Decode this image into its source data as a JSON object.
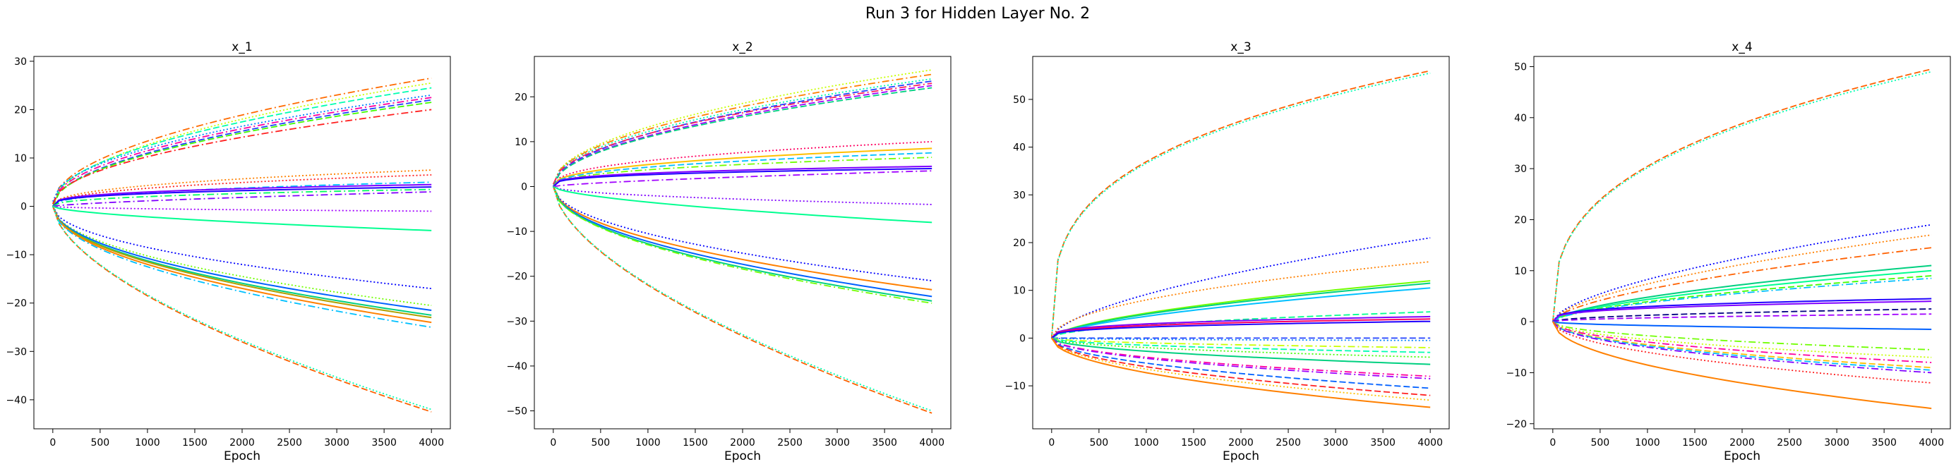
{
  "figure": {
    "title": "Run 3 for Hidden Layer No. 2"
  },
  "chart_data": [
    {
      "type": "line",
      "title": "x_1",
      "xlabel": "Epoch",
      "ylabel": "",
      "xlim": [
        -200,
        4200
      ],
      "ylim": [
        -46,
        31
      ],
      "xticks": [
        0,
        500,
        1000,
        1500,
        2000,
        2500,
        3000,
        3500,
        4000
      ],
      "yticks": [
        -40,
        -30,
        -20,
        -10,
        0,
        10,
        20,
        30
      ],
      "grid": false,
      "series": [
        {
          "color": "#ff6a00",
          "style": "dashdot",
          "start": 0.5,
          "end": 26.5,
          "curve": 0.5
        },
        {
          "color": "#c8ff00",
          "style": "dotted",
          "start": 0.0,
          "end": 25.5,
          "curve": 0.5
        },
        {
          "color": "#00ffb0",
          "style": "dashed",
          "start": 0.5,
          "end": 24.5,
          "curve": 0.5
        },
        {
          "color": "#0080ff",
          "style": "dotted",
          "start": 1.0,
          "end": 23.0,
          "curve": 0.5
        },
        {
          "color": "#ff00a0",
          "style": "dashdot",
          "start": 0.5,
          "end": 22.5,
          "curve": 0.5
        },
        {
          "color": "#2040ff",
          "style": "dashed",
          "start": 0.0,
          "end": 22.0,
          "curve": 0.5
        },
        {
          "color": "#40ff00",
          "style": "dashed",
          "start": 0.0,
          "end": 21.5,
          "curve": 0.5
        },
        {
          "color": "#ff2020",
          "style": "dashdot",
          "start": 0.5,
          "end": 20.0,
          "curve": 0.5
        },
        {
          "color": "#ff8000",
          "style": "dotted",
          "start": 0.0,
          "end": 7.5,
          "curve": 0.4
        },
        {
          "color": "#ff2020",
          "style": "dotted",
          "start": 0.0,
          "end": 6.5,
          "curve": 0.4
        },
        {
          "color": "#00c0ff",
          "style": "dashdot",
          "start": 0.0,
          "end": 5.0,
          "curve": 0.4
        },
        {
          "color": "#8000ff",
          "style": "solid",
          "start": 0.0,
          "end": 4.5,
          "curve": 0.3
        },
        {
          "color": "#2000ff",
          "style": "solid",
          "start": 0.0,
          "end": 4.0,
          "curve": 0.3
        },
        {
          "color": "#00ff60",
          "style": "dashdot",
          "start": 0.0,
          "end": 3.5,
          "curve": 0.4
        },
        {
          "color": "#8000ff",
          "style": "dashdot",
          "start": 0.0,
          "end": 3.0,
          "curve": 0.7
        },
        {
          "color": "#a000ff",
          "style": "dotted",
          "start": 0.0,
          "end": -1.0,
          "curve": 0.5
        },
        {
          "color": "#00ff90",
          "style": "solid",
          "start": 0.0,
          "end": -5.0,
          "curve": 0.6
        },
        {
          "color": "#0000ff",
          "style": "dotted",
          "start": 0.0,
          "end": -17.0,
          "curve": 0.5
        },
        {
          "color": "#70ff00",
          "style": "dotted",
          "start": 0.0,
          "end": -20.5,
          "curve": 0.5
        },
        {
          "color": "#0060ff",
          "style": "solid",
          "start": 0.0,
          "end": -21.5,
          "curve": 0.5
        },
        {
          "color": "#00d080",
          "style": "solid",
          "start": 0.0,
          "end": -22.5,
          "curve": 0.5
        },
        {
          "color": "#b0a000",
          "style": "solid",
          "start": 0.0,
          "end": -23.0,
          "curve": 0.5
        },
        {
          "color": "#ff8000",
          "style": "solid",
          "start": 0.0,
          "end": -24.0,
          "curve": 0.5
        },
        {
          "color": "#00c0ff",
          "style": "dashdot",
          "start": 0.0,
          "end": -25.0,
          "curve": 0.5
        },
        {
          "color": "#ff6000",
          "style": "dashed",
          "start": 0.0,
          "end": -42.5,
          "curve": 0.6
        },
        {
          "color": "#00ffb0",
          "style": "dotted",
          "start": 0.0,
          "end": -42.0,
          "curve": 0.6
        }
      ]
    },
    {
      "type": "line",
      "title": "x_2",
      "xlabel": "Epoch",
      "ylabel": "",
      "xlim": [
        -200,
        4200
      ],
      "ylim": [
        -54,
        29
      ],
      "xticks": [
        0,
        500,
        1000,
        1500,
        2000,
        2500,
        3000,
        3500,
        4000
      ],
      "yticks": [
        -50,
        -40,
        -30,
        -20,
        -10,
        0,
        10,
        20
      ],
      "grid": false,
      "series": [
        {
          "color": "#c8ff00",
          "style": "dotted",
          "start": 0.5,
          "end": 26.0,
          "curve": 0.5
        },
        {
          "color": "#ff8000",
          "style": "dashdot",
          "start": 0.5,
          "end": 25.0,
          "curve": 0.5
        },
        {
          "color": "#00ffb0",
          "style": "dotted",
          "start": 0.5,
          "end": 24.0,
          "curve": 0.5
        },
        {
          "color": "#2040ff",
          "style": "dashed",
          "start": 0.0,
          "end": 23.5,
          "curve": 0.5
        },
        {
          "color": "#ff2060",
          "style": "dashdot",
          "start": 0.5,
          "end": 23.0,
          "curve": 0.5
        },
        {
          "color": "#a000ff",
          "style": "dashed",
          "start": 0.0,
          "end": 22.5,
          "curve": 0.5
        },
        {
          "color": "#00d080",
          "style": "dashed",
          "start": 0.0,
          "end": 22.0,
          "curve": 0.5
        },
        {
          "color": "#ff0060",
          "style": "dotted",
          "start": 0.0,
          "end": 10.0,
          "curve": 0.4
        },
        {
          "color": "#ffc000",
          "style": "solid",
          "start": 0.0,
          "end": 8.5,
          "curve": 0.4
        },
        {
          "color": "#00c0ff",
          "style": "dashed",
          "start": 0.0,
          "end": 7.5,
          "curve": 0.4
        },
        {
          "color": "#70ff00",
          "style": "dashdot",
          "start": 0.0,
          "end": 6.5,
          "curve": 0.4
        },
        {
          "color": "#8000ff",
          "style": "solid",
          "start": 0.0,
          "end": 4.5,
          "curve": 0.3
        },
        {
          "color": "#2000ff",
          "style": "solid",
          "start": 0.0,
          "end": 4.0,
          "curve": 0.3
        },
        {
          "color": "#a000ff",
          "style": "dashdot",
          "start": 0.0,
          "end": 3.5,
          "curve": 0.7
        },
        {
          "color": "#8000ff",
          "style": "dotted",
          "start": 0.0,
          "end": -4.0,
          "curve": 0.5
        },
        {
          "color": "#00ff90",
          "style": "solid",
          "start": 0.0,
          "end": -8.0,
          "curve": 0.6
        },
        {
          "color": "#0000ff",
          "style": "dotted",
          "start": 0.0,
          "end": -21.0,
          "curve": 0.5
        },
        {
          "color": "#ff8000",
          "style": "solid",
          "start": 0.0,
          "end": -23.0,
          "curve": 0.5
        },
        {
          "color": "#0060ff",
          "style": "solid",
          "start": 0.0,
          "end": -24.5,
          "curve": 0.5
        },
        {
          "color": "#00d080",
          "style": "solid",
          "start": 0.0,
          "end": -25.5,
          "curve": 0.5
        },
        {
          "color": "#70ff00",
          "style": "dashdot",
          "start": 0.0,
          "end": -26.0,
          "curve": 0.5
        },
        {
          "color": "#ff6000",
          "style": "dashed",
          "start": 0.0,
          "end": -50.5,
          "curve": 0.6
        },
        {
          "color": "#00ffb0",
          "style": "dotted",
          "start": 0.0,
          "end": -50.0,
          "curve": 0.6
        }
      ]
    },
    {
      "type": "line",
      "title": "x_3",
      "xlabel": "Epoch",
      "ylabel": "",
      "xlim": [
        -200,
        4200
      ],
      "ylim": [
        -19,
        59
      ],
      "xticks": [
        0,
        500,
        1000,
        1500,
        2000,
        2500,
        3000,
        3500,
        4000
      ],
      "yticks": [
        -10,
        0,
        10,
        20,
        30,
        40,
        50
      ],
      "grid": false,
      "series": [
        {
          "color": "#ff6000",
          "style": "dashed",
          "start": 0.0,
          "end": 56.0,
          "curve": 0.3
        },
        {
          "color": "#00ffb0",
          "style": "dotted",
          "start": 0.0,
          "end": 55.5,
          "curve": 0.3
        },
        {
          "color": "#0000ff",
          "style": "dotted",
          "start": 0.0,
          "end": 21.0,
          "curve": 0.6
        },
        {
          "color": "#ff8000",
          "style": "dotted",
          "start": 0.0,
          "end": 16.0,
          "curve": 0.5
        },
        {
          "color": "#70ff00",
          "style": "solid",
          "start": 0.0,
          "end": 12.0,
          "curve": 0.6
        },
        {
          "color": "#00d080",
          "style": "solid",
          "start": 0.0,
          "end": 11.5,
          "curve": 0.6
        },
        {
          "color": "#00c0ff",
          "style": "solid",
          "start": 0.0,
          "end": 10.5,
          "curve": 0.6
        },
        {
          "color": "#00ff90",
          "style": "dashed",
          "start": 0.0,
          "end": 5.5,
          "curve": 0.5
        },
        {
          "color": "#8000ff",
          "style": "solid",
          "start": 0.0,
          "end": 4.5,
          "curve": 0.3
        },
        {
          "color": "#ff0060",
          "style": "solid",
          "start": 0.0,
          "end": 4.0,
          "curve": 0.3
        },
        {
          "color": "#2000ff",
          "style": "solid",
          "start": 0.0,
          "end": 3.5,
          "curve": 0.3
        },
        {
          "color": "#2040ff",
          "style": "dashed",
          "start": 0.0,
          "end": 0.0,
          "curve": 0.5
        },
        {
          "color": "#0080ff",
          "style": "dotted",
          "start": 0.0,
          "end": -0.5,
          "curve": 0.5
        },
        {
          "color": "#c8ff00",
          "style": "dashdot",
          "start": 0.0,
          "end": -2.0,
          "curve": 0.5
        },
        {
          "color": "#00ffb0",
          "style": "dashed",
          "start": 0.0,
          "end": -3.0,
          "curve": 0.5
        },
        {
          "color": "#40ff00",
          "style": "dotted",
          "start": 0.0,
          "end": -4.0,
          "curve": 0.5
        },
        {
          "color": "#00d080",
          "style": "solid",
          "start": 0.0,
          "end": -5.5,
          "curve": 0.5
        },
        {
          "color": "#ff00a0",
          "style": "dashdot",
          "start": 0.0,
          "end": -8.0,
          "curve": 0.5
        },
        {
          "color": "#a000ff",
          "style": "dashdot",
          "start": 0.0,
          "end": -8.5,
          "curve": 0.5
        },
        {
          "color": "#0060ff",
          "style": "dashed",
          "start": 0.0,
          "end": -10.5,
          "curve": 0.5
        },
        {
          "color": "#ff2020",
          "style": "dashed",
          "start": 0.0,
          "end": -12.0,
          "curve": 0.5
        },
        {
          "color": "#ffc000",
          "style": "dotted",
          "start": 0.0,
          "end": -13.0,
          "curve": 0.5
        },
        {
          "color": "#ff8000",
          "style": "solid",
          "start": 0.0,
          "end": -14.5,
          "curve": 0.5
        }
      ]
    },
    {
      "type": "line",
      "title": "x_4",
      "xlabel": "Epoch",
      "ylabel": "",
      "xlim": [
        -200,
        4200
      ],
      "ylim": [
        -21,
        52
      ],
      "xticks": [
        0,
        500,
        1000,
        1500,
        2000,
        2500,
        3000,
        3500,
        4000
      ],
      "yticks": [
        -20,
        -10,
        0,
        10,
        20,
        30,
        40,
        50
      ],
      "grid": false,
      "series": [
        {
          "color": "#ff6000",
          "style": "dashed",
          "start": 0.0,
          "end": 49.5,
          "curve": 0.35
        },
        {
          "color": "#00ffb0",
          "style": "dotted",
          "start": 0.0,
          "end": 49.0,
          "curve": 0.35
        },
        {
          "color": "#0000ff",
          "style": "dotted",
          "start": 0.0,
          "end": 19.0,
          "curve": 0.6
        },
        {
          "color": "#ff8000",
          "style": "dotted",
          "start": 0.0,
          "end": 17.0,
          "curve": 0.6
        },
        {
          "color": "#ff6000",
          "style": "dashdot",
          "start": 0.0,
          "end": 14.5,
          "curve": 0.6
        },
        {
          "color": "#00d080",
          "style": "solid",
          "start": 0.0,
          "end": 11.0,
          "curve": 0.6
        },
        {
          "color": "#00ff90",
          "style": "solid",
          "start": 0.0,
          "end": 10.0,
          "curve": 0.6
        },
        {
          "color": "#40ff00",
          "style": "dashed",
          "start": 0.0,
          "end": 9.0,
          "curve": 0.6
        },
        {
          "color": "#00c0ff",
          "style": "dashdot",
          "start": 0.0,
          "end": 8.5,
          "curve": 0.6
        },
        {
          "color": "#2000ff",
          "style": "solid",
          "start": 0.0,
          "end": 4.5,
          "curve": 0.3
        },
        {
          "color": "#8000ff",
          "style": "solid",
          "start": 0.0,
          "end": 4.0,
          "curve": 0.3
        },
        {
          "color": "#000080",
          "style": "dashed",
          "start": 0.0,
          "end": 2.5,
          "curve": 0.5
        },
        {
          "color": "#a000ff",
          "style": "dashed",
          "start": 0.0,
          "end": 1.5,
          "curve": 0.5
        },
        {
          "color": "#0060ff",
          "style": "solid",
          "start": 0.0,
          "end": -1.5,
          "curve": 0.5
        },
        {
          "color": "#70ff00",
          "style": "dashdot",
          "start": 0.0,
          "end": -5.5,
          "curve": 0.5
        },
        {
          "color": "#c8ff00",
          "style": "dotted",
          "start": 0.0,
          "end": -7.0,
          "curve": 0.5
        },
        {
          "color": "#ff00a0",
          "style": "dashdot",
          "start": 0.0,
          "end": -8.0,
          "curve": 0.5
        },
        {
          "color": "#ffc000",
          "style": "dashed",
          "start": 0.0,
          "end": -9.0,
          "curve": 0.5
        },
        {
          "color": "#00c0ff",
          "style": "dashed",
          "start": 0.0,
          "end": -9.5,
          "curve": 0.5
        },
        {
          "color": "#8000ff",
          "style": "dashdot",
          "start": 0.0,
          "end": -10.0,
          "curve": 0.5
        },
        {
          "color": "#ff2020",
          "style": "dotted",
          "start": 0.0,
          "end": -12.0,
          "curve": 0.5
        },
        {
          "color": "#ff8000",
          "style": "solid",
          "start": 0.0,
          "end": -17.0,
          "curve": 0.5
        }
      ]
    }
  ]
}
